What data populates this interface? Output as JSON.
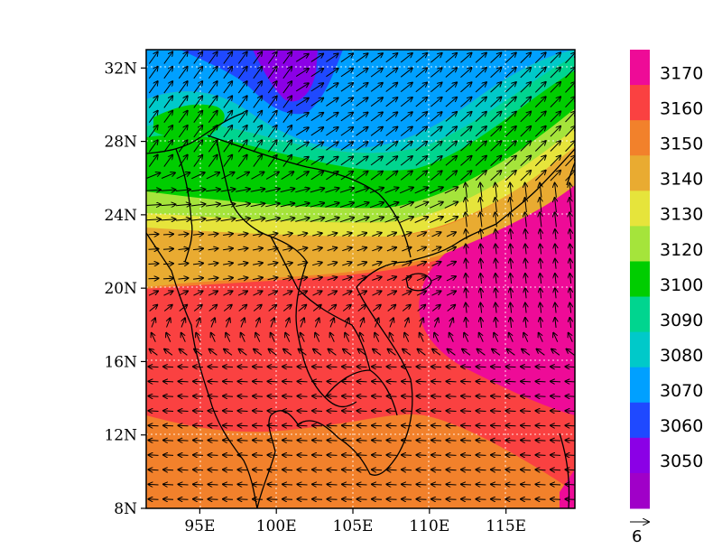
{
  "chart_data": {
    "type": "heatmap",
    "overlay": "wind-vectors",
    "x_axis": {
      "range_deg_e": [
        91.5,
        119.5
      ],
      "ticks": [
        {
          "value": 95,
          "label": "95E"
        },
        {
          "value": 100,
          "label": "100E"
        },
        {
          "value": 105,
          "label": "105E"
        },
        {
          "value": 110,
          "label": "110E"
        },
        {
          "value": 115,
          "label": "115E"
        }
      ]
    },
    "y_axis": {
      "range_deg_n": [
        8,
        33
      ],
      "ticks": [
        {
          "value": 8,
          "label": "8N"
        },
        {
          "value": 12,
          "label": "12N"
        },
        {
          "value": 16,
          "label": "16N"
        },
        {
          "value": 20,
          "label": "20N"
        },
        {
          "value": 24,
          "label": "24N"
        },
        {
          "value": 28,
          "label": "28N"
        },
        {
          "value": 32,
          "label": "32N"
        }
      ]
    },
    "grid": true,
    "colorbar": {
      "placement": "right",
      "levels": [
        3050,
        3060,
        3070,
        3080,
        3090,
        3100,
        3120,
        3130,
        3140,
        3150,
        3160,
        3170
      ],
      "labels": [
        "3170",
        "3160",
        "3150",
        "3140",
        "3130",
        "3120",
        "3100",
        "3090",
        "3080",
        "3070",
        "3060",
        "3050"
      ],
      "colors_top_to_bottom": [
        "#ee0b97",
        "#fa4141",
        "#f2812b",
        "#e9ab31",
        "#e6e43b",
        "#a5e43b",
        "#00cd00",
        "#00d58f",
        "#00c9c9",
        "#00a0ff",
        "#1f49ff",
        "#8b00e6",
        "#a000c8"
      ]
    },
    "reference_vector": {
      "label": "6"
    }
  }
}
